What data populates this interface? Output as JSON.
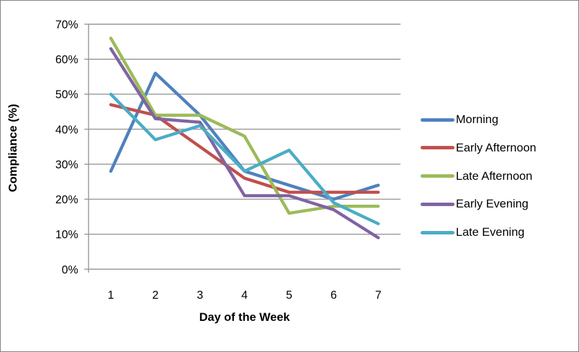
{
  "chart_data": {
    "type": "line",
    "title": "",
    "xlabel": "Day of the Week",
    "ylabel": "Compliance (%)",
    "categories": [
      "1",
      "2",
      "3",
      "4",
      "5",
      "6",
      "7"
    ],
    "series": [
      {
        "name": "Morning",
        "color": "#4F81BD",
        "values": [
          28,
          56,
          44,
          28,
          24,
          20,
          24
        ]
      },
      {
        "name": "Early Afternoon",
        "color": "#C0504D",
        "values": [
          47,
          44,
          35,
          26,
          22,
          22,
          22
        ]
      },
      {
        "name": "Late Afternoon",
        "color": "#9BBB59",
        "values": [
          66,
          44,
          44,
          38,
          16,
          18,
          18
        ]
      },
      {
        "name": "Early Evening",
        "color": "#8064A2",
        "values": [
          63,
          43,
          42,
          21,
          21,
          17,
          9
        ]
      },
      {
        "name": "Late Evening",
        "color": "#4BACC6",
        "values": [
          50,
          37,
          41,
          28,
          34,
          19,
          13
        ]
      }
    ],
    "ylim": [
      0,
      70
    ],
    "ytick_step": 10,
    "ytick_labels": [
      "0%",
      "10%",
      "20%",
      "30%",
      "40%",
      "50%",
      "60%",
      "70%"
    ],
    "grid": true,
    "legend_position": "right",
    "gridline_color": "#969696",
    "axis_color": "#969696",
    "background_color": "#ffffff",
    "border_color": "#7f7f7f"
  }
}
